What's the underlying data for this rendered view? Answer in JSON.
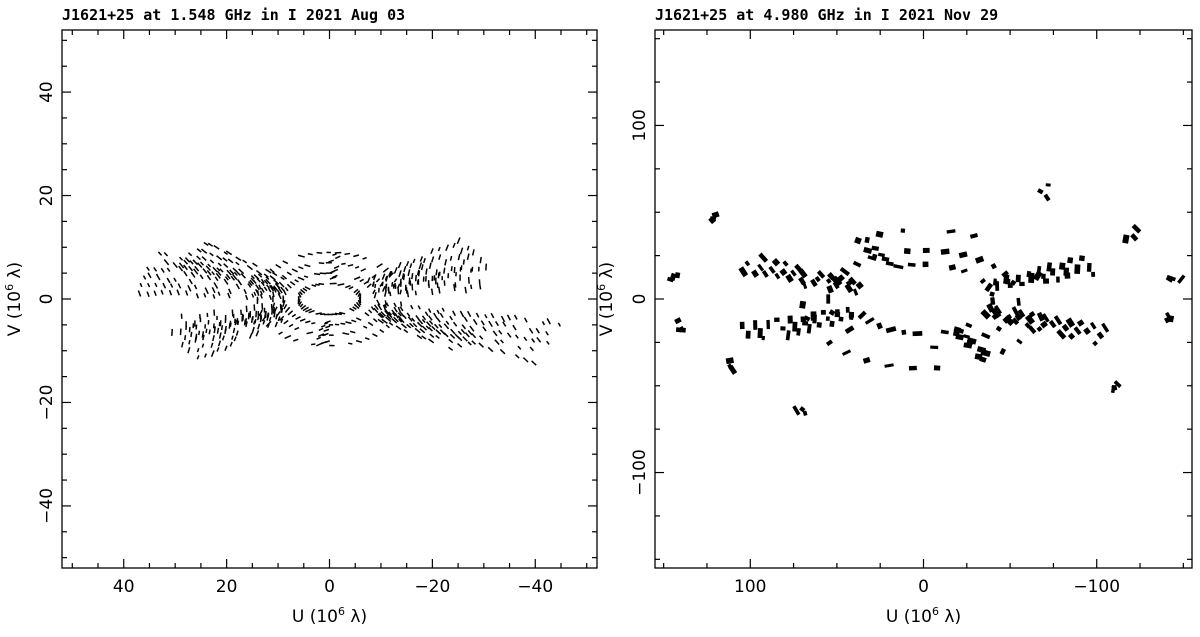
{
  "chart_data": [
    {
      "type": "scatter",
      "title": "J1621+25 at 1.548 GHz in I  2021 Aug 03",
      "xlabel": "U (10⁶ λ)",
      "ylabel": "V (10⁶ λ)",
      "xlim": [
        52,
        -52
      ],
      "ylim": [
        -52,
        52
      ],
      "xticks": [
        40,
        20,
        0,
        -20,
        -40
      ],
      "yticks": [
        -40,
        -20,
        0,
        20,
        40
      ],
      "xtick_labels": [
        "40",
        "20",
        "0",
        "−20",
        "−40"
      ],
      "ytick_labels": [
        "−40",
        "−20",
        "0",
        "20",
        "40"
      ],
      "mark": "short dashes",
      "coverage": {
        "rings": [
          [
            6,
            3
          ],
          [
            9,
            5
          ],
          [
            11,
            7
          ],
          [
            14,
            9
          ]
        ],
        "arms": [
          {
            "angle": 15,
            "r": [
              10,
              38
            ],
            "tracks": 6
          },
          {
            "angle": 30,
            "r": [
              12,
              32
            ],
            "tracks": 5
          },
          {
            "angle": 165,
            "r": [
              12,
              30
            ],
            "tracks": 4
          },
          {
            "angle": 150,
            "r": [
              10,
              34
            ],
            "tracks": 5
          },
          {
            "angle": 200,
            "r": [
              10,
              46
            ],
            "tracks": 5
          },
          {
            "angle": 210,
            "r": [
              12,
              30
            ],
            "tracks": 4
          },
          {
            "angle": 340,
            "r": [
              10,
              30
            ],
            "tracks": 4
          },
          {
            "angle": 330,
            "r": [
              12,
              34
            ],
            "tracks": 5
          },
          {
            "angle": 95,
            "r": [
              8,
              16
            ],
            "tracks": 2
          },
          {
            "angle": 275,
            "r": [
              8,
              16
            ],
            "tracks": 2
          }
        ]
      }
    },
    {
      "type": "scatter",
      "title": "J1621+25 at 4.980 GHz in I  2021 Nov 29",
      "xlabel": "U (10⁶ λ)",
      "ylabel": "V (10⁶ λ)",
      "xlim": [
        155,
        -155
      ],
      "ylim": [
        -155,
        155
      ],
      "xticks": [
        100,
        0,
        -100
      ],
      "yticks": [
        -100,
        0,
        100
      ],
      "xtick_labels": [
        "100",
        "0",
        "−100"
      ],
      "ytick_labels": [
        "−100",
        "0",
        "100"
      ],
      "mark": "filled patches",
      "coverage": {
        "rings": [
          [
            40,
            20
          ],
          [
            55,
            28
          ],
          [
            70,
            40
          ]
        ],
        "arms": [
          {
            "angle": 20,
            "r": [
              45,
              110
            ],
            "tracks": 3
          },
          {
            "angle": 160,
            "r": [
              45,
              105
            ],
            "tracks": 3
          },
          {
            "angle": 200,
            "r": [
              45,
              110
            ],
            "tracks": 3
          },
          {
            "angle": 340,
            "r": [
              45,
              110
            ],
            "tracks": 3
          },
          {
            "angle": 60,
            "r": [
              40,
              70
            ],
            "tracks": 2
          },
          {
            "angle": 240,
            "r": [
              40,
              70
            ],
            "tracks": 2
          }
        ],
        "outliers": [
          [
            145,
            10
          ],
          [
            140,
            -15
          ],
          [
            120,
            48
          ],
          [
            112,
            -38
          ],
          [
            -145,
            15
          ],
          [
            -142,
            -10
          ],
          [
            -120,
            38
          ],
          [
            -112,
            -48
          ],
          [
            72,
            -62
          ],
          [
            -70,
            62
          ]
        ]
      }
    }
  ]
}
